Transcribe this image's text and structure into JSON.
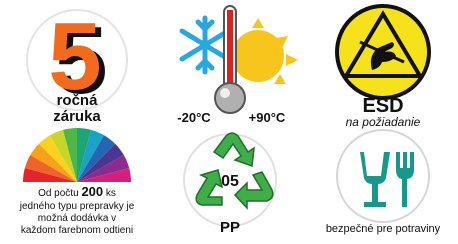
{
  "items": [
    {
      "number": 5,
      "line1": "ročná",
      "line2": "záruka"
    },
    {
      "low": "-20°C",
      "high": "+90°C"
    },
    {
      "label": "ESD",
      "note": "na požiadanie"
    },
    {
      "prefix": "Od počtu",
      "count": 200,
      "unit": "ks",
      "lines": [
        "jedného typu prepravky je",
        "možná dodávka v",
        "každom farebnom odtieni"
      ]
    },
    {
      "code": "05",
      "material": "PP"
    },
    {
      "caption": "bezpečné pre potraviny"
    }
  ]
}
